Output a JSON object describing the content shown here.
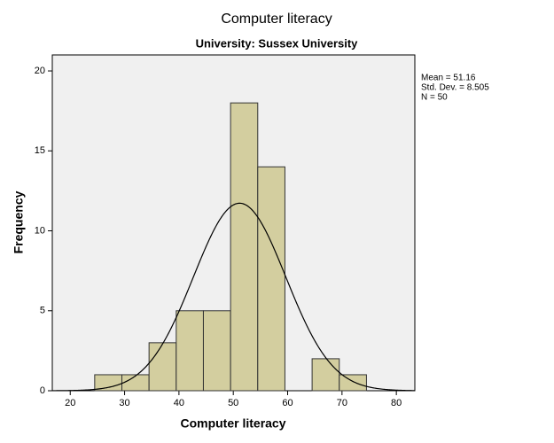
{
  "chart_data": {
    "type": "histogram",
    "title": "Computer literacy",
    "subtitle": "University: Sussex University",
    "x_label": "Computer literacy",
    "y_label": "Frequency",
    "bins": [
      24.5,
      29.5,
      34.5,
      39.5,
      44.5,
      49.5,
      54.5,
      59.5,
      64.5,
      69.5,
      74.5
    ],
    "counts": [
      1,
      1,
      3,
      5,
      5,
      18,
      14,
      0,
      2,
      1
    ],
    "color": "#d3ce9f",
    "xlim": [
      16.7,
      83.4
    ],
    "xticks": [
      20,
      30,
      40,
      50,
      60,
      70,
      80
    ],
    "ylim": [
      0,
      21
    ],
    "yticks": [
      0,
      5,
      10,
      15,
      20
    ],
    "normal_curve": true,
    "stats": [
      {
        "value": 51.16,
        "label": "Mean = 51.16"
      },
      {
        "value": 8.505,
        "label": "Std. Dev. = 8.505"
      },
      {
        "value": 50,
        "label": "N = 50"
      }
    ]
  }
}
